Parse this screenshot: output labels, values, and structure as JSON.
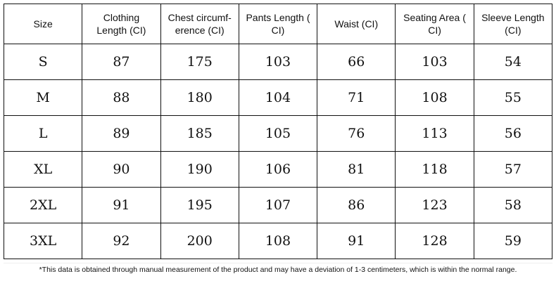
{
  "table": {
    "header": [
      [
        "Size"
      ],
      [
        "Clothing",
        "Length (CI)"
      ],
      [
        "Chest circumf-",
        "erence (CI)"
      ],
      [
        "Pants Length (",
        "CI)"
      ],
      [
        "Waist (CI)"
      ],
      [
        "Seating Area (",
        "CI)"
      ],
      [
        "Sleeve Length",
        "(CI)"
      ]
    ],
    "rows": [
      [
        "S",
        87,
        175,
        103,
        66,
        103,
        54
      ],
      [
        "M",
        88,
        180,
        104,
        71,
        108,
        55
      ],
      [
        "L",
        89,
        185,
        105,
        76,
        113,
        56
      ],
      [
        "XL",
        90,
        190,
        106,
        81,
        118,
        57
      ],
      [
        "2XL",
        91,
        195,
        107,
        86,
        123,
        58
      ],
      [
        "3XL",
        92,
        200,
        108,
        91,
        128,
        59
      ]
    ]
  },
  "footnote": "*This data is obtained through manual measurement of the product and may have a deviation of 1-3 centimeters, which is within the normal range."
}
